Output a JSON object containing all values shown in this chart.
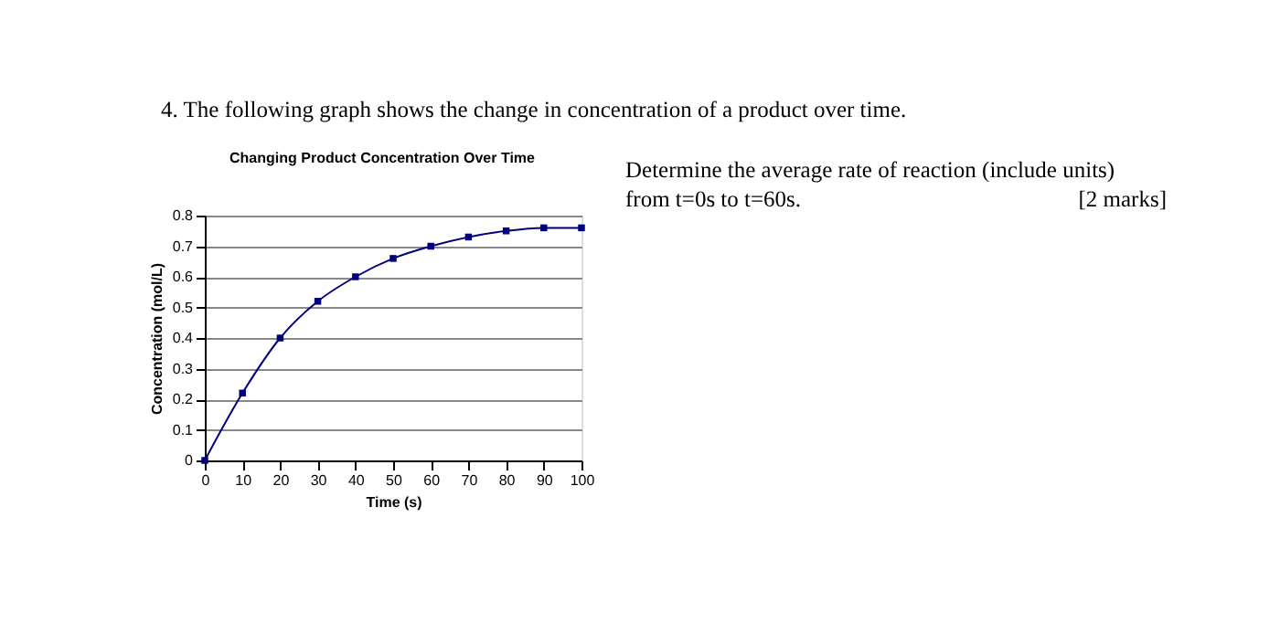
{
  "chart_data": {
    "type": "line",
    "title": "Changing Product Concentration Over Time",
    "xlabel": "Time (s)",
    "ylabel": "Concentration (mol/L)",
    "x": [
      0,
      10,
      20,
      30,
      40,
      50,
      60,
      70,
      80,
      90,
      100
    ],
    "series": [
      {
        "color": "#00007f",
        "values": [
          0,
          0.22,
          0.4,
          0.52,
          0.6,
          0.66,
          0.7,
          0.73,
          0.75,
          0.76,
          0.76
        ]
      }
    ],
    "xlim": [
      0,
      100
    ],
    "xticks": [
      0,
      10,
      20,
      30,
      40,
      50,
      60,
      70,
      80,
      90,
      100
    ],
    "ylim": [
      0,
      0.8
    ],
    "yticks": [
      0,
      0.1,
      0.2,
      0.3,
      0.4,
      0.5,
      0.6,
      0.7,
      0.8
    ],
    "grid": "y",
    "marker": "square",
    "line_style": "solid",
    "annotations": [
      "4. The following graph shows the change in concentration of a product over time.",
      "Determine the average rate of reaction (include units)",
      "from t=0s to t=60s.",
      "[2 marks]"
    ]
  }
}
